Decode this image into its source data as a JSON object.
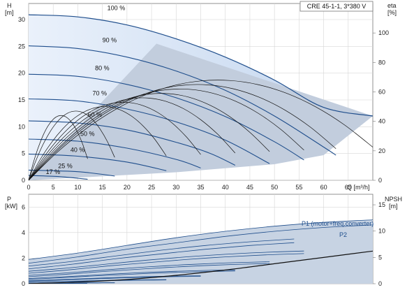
{
  "model_label": "CRE 45-1-1, 3*380 V",
  "chart_data": [
    {
      "type": "line",
      "title": "",
      "xlabel": "Q [m³/h]",
      "ylabel_left": "H\n[m]",
      "ylabel_right": "eta\n[%]",
      "x_ticks": [
        0,
        5,
        10,
        15,
        20,
        25,
        30,
        35,
        40,
        45,
        50,
        55,
        60,
        65
      ],
      "x_unit_label": "Q [m³/h]",
      "xlim": [
        0,
        70
      ],
      "ylim_left": [
        0,
        33
      ],
      "ylim_right": [
        0,
        120
      ],
      "y_ticks_left": [
        0,
        5,
        10,
        15,
        20,
        25,
        30
      ],
      "y_ticks_right": [
        0,
        20,
        40,
        60,
        80,
        100
      ],
      "H_label_top": "H",
      "H_label_unit": "[m]",
      "eta_label_top": "eta",
      "eta_label_unit": "[%]",
      "speed_labels": [
        "100 %",
        "90 %",
        "80 %",
        "70 %",
        "60 %",
        "50 %",
        "40 %",
        "25 %",
        "17 %"
      ],
      "speed_series": [
        {
          "speed": 1.0,
          "x": [
            0,
            10,
            20,
            30,
            40,
            50,
            60,
            70
          ],
          "H": [
            30.9,
            30.5,
            29.0,
            26.4,
            23.0,
            18.7,
            13.6,
            12.0
          ]
        },
        {
          "speed": 0.9,
          "x": [
            0,
            10,
            20,
            30,
            40,
            50,
            60,
            62.5
          ],
          "H": [
            25.1,
            24.6,
            23.0,
            20.4,
            16.8,
            12.0,
            6.2,
            4.7
          ]
        },
        {
          "speed": 0.8,
          "x": [
            0,
            10,
            20,
            30,
            40,
            50,
            56
          ],
          "H": [
            19.8,
            19.4,
            17.9,
            15.4,
            11.9,
            7.2,
            3.8
          ]
        },
        {
          "speed": 0.7,
          "x": [
            0,
            10,
            20,
            30,
            40,
            49
          ],
          "H": [
            15.2,
            14.8,
            13.3,
            10.9,
            7.5,
            3.1
          ]
        },
        {
          "speed": 0.6,
          "x": [
            0,
            10,
            20,
            30,
            37,
            42
          ],
          "H": [
            11.1,
            10.7,
            9.4,
            7.1,
            5.0,
            2.8
          ]
        },
        {
          "speed": 0.5,
          "x": [
            0,
            10,
            20,
            30,
            35
          ],
          "H": [
            7.7,
            7.3,
            6.0,
            3.9,
            2.3
          ]
        },
        {
          "speed": 0.4,
          "x": [
            0,
            10,
            20,
            28
          ],
          "H": [
            4.9,
            4.5,
            3.4,
            1.8
          ]
        },
        {
          "speed": 0.25,
          "x": [
            0,
            10,
            17.5
          ],
          "H": [
            1.9,
            1.6,
            0.8
          ]
        },
        {
          "speed": 0.17,
          "x": [
            0,
            6,
            12
          ],
          "H": [
            0.9,
            0.7,
            0.2
          ]
        }
      ]
    },
    {
      "type": "line",
      "title": "",
      "xlabel": "",
      "ylabel_left": "P\n[kW]",
      "ylabel_right": "NPSH\n[m]",
      "P_label_top": "P",
      "P_label_unit": "[kW]",
      "npsh_label_top": "NPSH",
      "npsh_label_unit": "[m]",
      "xlim": [
        0,
        70
      ],
      "ylim_left": [
        0,
        7
      ],
      "ylim_right": [
        0,
        17
      ],
      "y_ticks_left": [
        0,
        2,
        4,
        6
      ],
      "y_ticks_right": [
        0,
        5,
        10,
        15
      ],
      "series_labels": [
        "P1 (motor+freq.converter)",
        "P2"
      ],
      "P1_100": {
        "x": [
          0,
          10,
          20,
          30,
          40,
          50,
          60,
          70
        ],
        "y": [
          1.9,
          2.4,
          3.0,
          3.6,
          4.1,
          4.5,
          4.8,
          5.0
        ]
      },
      "P2_100": {
        "x": [
          0,
          10,
          20,
          30,
          40,
          50,
          60,
          70
        ],
        "y": [
          1.6,
          2.1,
          2.7,
          3.2,
          3.7,
          4.1,
          4.4,
          4.6
        ]
      },
      "NPSH": {
        "x": [
          0,
          10,
          20,
          30,
          40,
          50,
          60,
          70
        ],
        "y": [
          0.0,
          0.3,
          0.8,
          1.6,
          2.6,
          3.8,
          5.0,
          6.2
        ]
      }
    }
  ]
}
